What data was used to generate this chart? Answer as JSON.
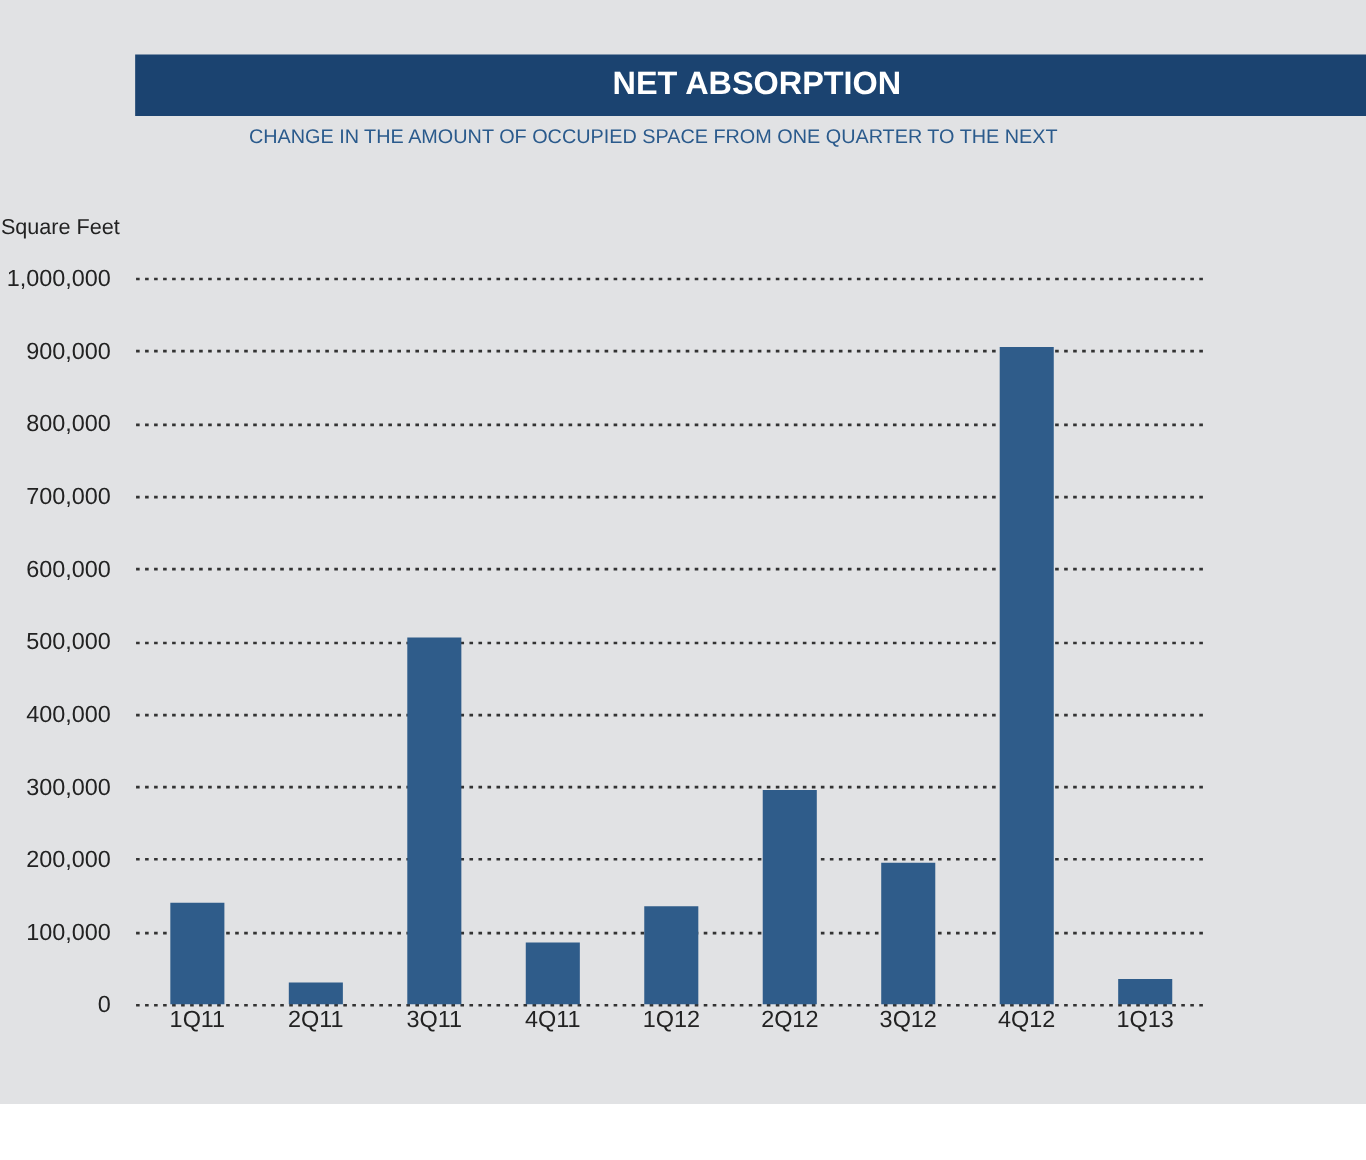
{
  "chart_data": {
    "type": "bar",
    "title": "NET ABSORPTION",
    "subtitle": "CHANGE IN THE AMOUNT OF OCCUPIED SPACE FROM ONE QUARTER TO THE NEXT",
    "ylabel": "Square Feet",
    "categories": [
      "1Q11",
      "2Q11",
      "3Q11",
      "4Q11",
      "1Q12",
      "2Q12",
      "3Q12",
      "4Q12",
      "1Q13"
    ],
    "values": [
      140000,
      30000,
      505000,
      85000,
      135000,
      295000,
      195000,
      905000,
      35000
    ],
    "color": "#2f5c8a",
    "ylim": [
      0,
      1000000
    ],
    "yticks": [
      0,
      {
        "value": 100000,
        "label": "100,000"
      },
      {
        "value": 200000,
        "label": "200,000"
      },
      {
        "value": 300000,
        "label": "300,000"
      },
      {
        "value": 400000,
        "label": "400,000"
      },
      {
        "value": 500000,
        "label": "500,000"
      },
      {
        "value": 600000,
        "label": "600,000"
      },
      {
        "value": 700000,
        "label": "700,000"
      },
      {
        "value": 800000,
        "label": "800,000"
      },
      {
        "value": 900000,
        "label": "900,000"
      },
      {
        "value": 1000000,
        "label": "1,000,000"
      }
    ],
    "grid": "y"
  }
}
